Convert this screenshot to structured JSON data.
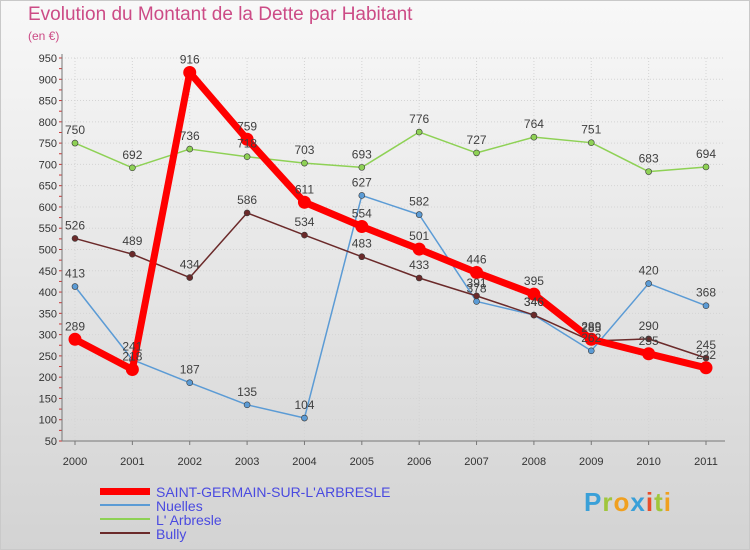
{
  "title": "Evolution du Montant de la Dette par Habitant",
  "subtitle": "(en €)",
  "logo": "Proxiti",
  "chart_data": {
    "type": "line",
    "title": "Evolution du Montant de la Dette par Habitant",
    "ylabel": "(en €)",
    "xlabel": "",
    "grid": true,
    "ylim": [
      50,
      950
    ],
    "ytick_step": 50,
    "categories": [
      "2000",
      "2001",
      "2002",
      "2003",
      "2004",
      "2005",
      "2006",
      "2007",
      "2008",
      "2009",
      "2010",
      "2011"
    ],
    "series": [
      {
        "name": "SAINT-GERMAIN-SUR-L'ARBRESLE",
        "color": "#ff0000",
        "width": 7,
        "marker": 6.5,
        "values": [
          289,
          218,
          916,
          759,
          611,
          554,
          501,
          446,
          395,
          289,
          255,
          222
        ]
      },
      {
        "name": "Nuelles",
        "color": "#5b9bd5",
        "width": 1.5,
        "marker": 3,
        "values": [
          413,
          241,
          187,
          135,
          104,
          627,
          582,
          378,
          346,
          262,
          420,
          368
        ]
      },
      {
        "name": "L' Arbresle",
        "color": "#8ed155",
        "width": 1.5,
        "marker": 3,
        "values": [
          750,
          692,
          736,
          718,
          703,
          693,
          776,
          727,
          764,
          751,
          683,
          694
        ]
      },
      {
        "name": "Bully",
        "color": "#6b2a2a",
        "width": 1.5,
        "marker": 3,
        "values": [
          526,
          489,
          434,
          586,
          534,
          483,
          433,
          391,
          346,
          285,
          290,
          245
        ]
      }
    ]
  }
}
